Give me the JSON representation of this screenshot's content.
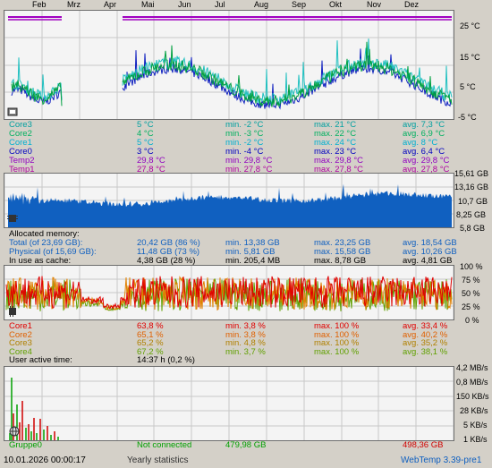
{
  "months": [
    "Feb",
    "Mrz",
    "Apr",
    "Mai",
    "Jun",
    "Jul",
    "Aug",
    "Sep",
    "Okt",
    "Nov",
    "Dez"
  ],
  "temp_panel": {
    "axis_labels": [
      "25 °C",
      "15 °C",
      "5 °C",
      "-5 °C"
    ],
    "rows": [
      {
        "name": "Core3",
        "cur": "5 °C",
        "min": "min. -2 °C",
        "max": "max. 21 °C",
        "avg": "avg. 7,3 °C",
        "color": "#00a0a0"
      },
      {
        "name": "Core2",
        "cur": "4 °C",
        "min": "min. -3 °C",
        "max": "max. 22 °C",
        "avg": "avg. 6,9 °C",
        "color": "#00b060"
      },
      {
        "name": "Core1",
        "cur": "5 °C",
        "min": "min. -2 °C",
        "max": "max. 24 °C",
        "avg": "avg. 8 °C",
        "color": "#00b0d0"
      },
      {
        "name": "Core0",
        "cur": "3 °C",
        "min": "min. -4 °C",
        "max": "max. 23 °C",
        "avg": "avg. 6,4 °C",
        "color": "#0000c0"
      },
      {
        "name": "Temp2",
        "cur": "29,8 °C",
        "min": "min. 29,8 °C",
        "max": "max. 29,8 °C",
        "avg": "avg. 29,8 °C",
        "color": "#9000c0"
      },
      {
        "name": "Temp1",
        "cur": "27,8 °C",
        "min": "min. 27,8 °C",
        "max": "max. 27,8 °C",
        "avg": "avg. 27,8 °C",
        "color": "#b000a0"
      }
    ]
  },
  "mem_panel": {
    "axis_labels": [
      "15,61 GB",
      "13,16 GB",
      "10,7 GB",
      "8,25 GB",
      "5,8 GB"
    ],
    "title": "Allocated memory:",
    "rows": [
      {
        "name": "Total (of 23,69 GB):",
        "cur": "20,42 GB (86 %)",
        "min": "min. 13,38 GB",
        "max": "max. 23,25 GB",
        "avg": "avg. 18,54 GB",
        "color": "#1060c0"
      },
      {
        "name": "Physical (of 15,69 GB):",
        "cur": "11,48 GB (73 %)",
        "min": "min. 5,81 GB",
        "max": "max. 15,58 GB",
        "avg": "avg. 10,26 GB",
        "color": "#1060c0"
      },
      {
        "name": "In use as cache:",
        "cur": "4,38 GB (28 %)",
        "min": "min. 205,4 MB",
        "max": "max. 8,78 GB",
        "avg": "avg. 4,81 GB",
        "color": "#000000"
      }
    ]
  },
  "cpu_panel": {
    "axis_labels": [
      "100 %",
      "75 %",
      "50 %",
      "25 %",
      "0 %"
    ],
    "rows": [
      {
        "name": "Core1",
        "cur": "63,8 %",
        "min": "min. 3,8 %",
        "max": "max. 100 %",
        "avg": "avg. 33,4 %",
        "color": "#e00000"
      },
      {
        "name": "Core2",
        "cur": "65,1 %",
        "min": "min. 3,8 %",
        "max": "max. 100 %",
        "avg": "avg. 40,2 %",
        "color": "#e06000"
      },
      {
        "name": "Core3",
        "cur": "65,2 %",
        "min": "min. 4,8 %",
        "max": "max. 100 %",
        "avg": "avg. 35,2 %",
        "color": "#b08000"
      },
      {
        "name": "Core4",
        "cur": "67,2 %",
        "min": "min. 3,7 %",
        "max": "max. 100 %",
        "avg": "avg. 38,1 %",
        "color": "#60a000"
      }
    ],
    "active_label": "User active time:",
    "active_value": "14:37 h (0,2 %)"
  },
  "net_panel": {
    "axis_labels": [
      "4,2 MB/s",
      "0,8 MB/s",
      "150 KB/s",
      "28 KB/s",
      "5 KB/s",
      "1 KB/s"
    ],
    "group_name": "Gruppe0",
    "status": "Not connected",
    "received": "479,98 GB",
    "sent": "498,36 GB"
  },
  "footer": {
    "timestamp": "10.01.2026 00:00:17",
    "title": "Yearly statistics",
    "version": "WebTemp 3.39-pre1"
  },
  "colors": {
    "temp_green": "#00a040",
    "temp_blue": "#1020c0",
    "temp_cyan": "#20c0c0",
    "purple_line": "#a000c0",
    "mem_blue": "#1060c0",
    "cpu_red": "#e00000",
    "cpu_orange": "#e08000",
    "cpu_green": "#60a000",
    "net_green": "#00a000",
    "net_red": "#d00000"
  }
}
